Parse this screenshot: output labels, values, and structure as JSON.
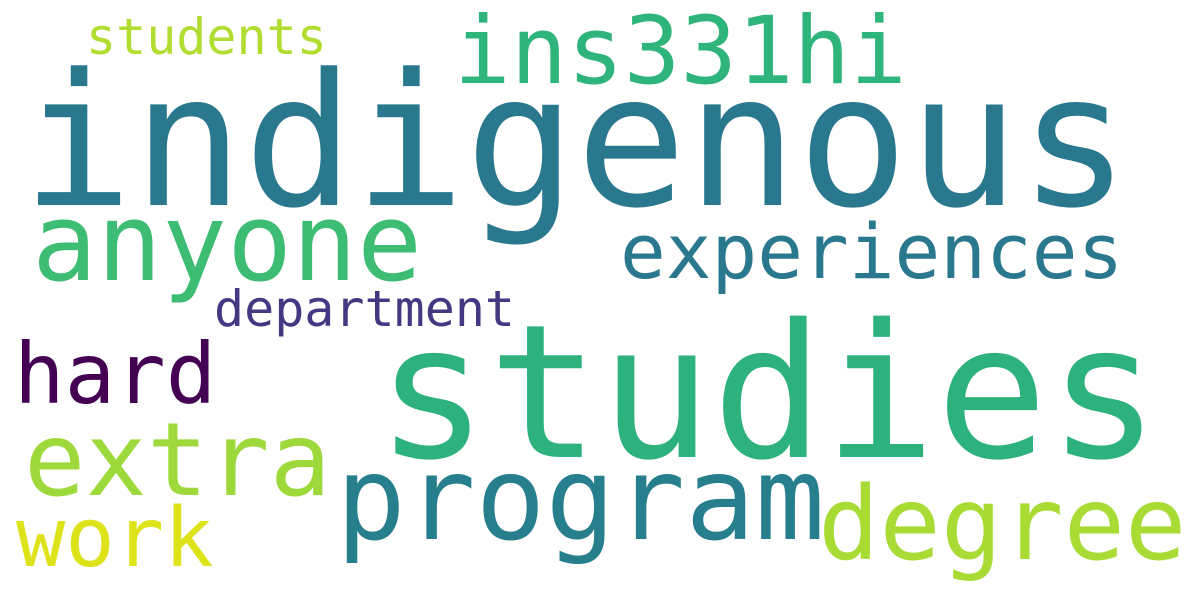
{
  "words": [
    {
      "text": "indigenous",
      "color": "#2a788e"
    },
    {
      "text": "studies",
      "color": "#2db27d"
    },
    {
      "text": "ins331hi",
      "color": "#2fb47c"
    },
    {
      "text": "anyone",
      "color": "#3dbc74"
    },
    {
      "text": "experiences",
      "color": "#2a788e"
    },
    {
      "text": "program",
      "color": "#277f8e"
    },
    {
      "text": "degree",
      "color": "#a8db34"
    },
    {
      "text": "extra",
      "color": "#9dd93b"
    },
    {
      "text": "hard",
      "color": "#440154"
    },
    {
      "text": "department",
      "color": "#453781"
    },
    {
      "text": "students",
      "color": "#b0dd2f"
    },
    {
      "text": "work",
      "color": "#dde318"
    }
  ]
}
